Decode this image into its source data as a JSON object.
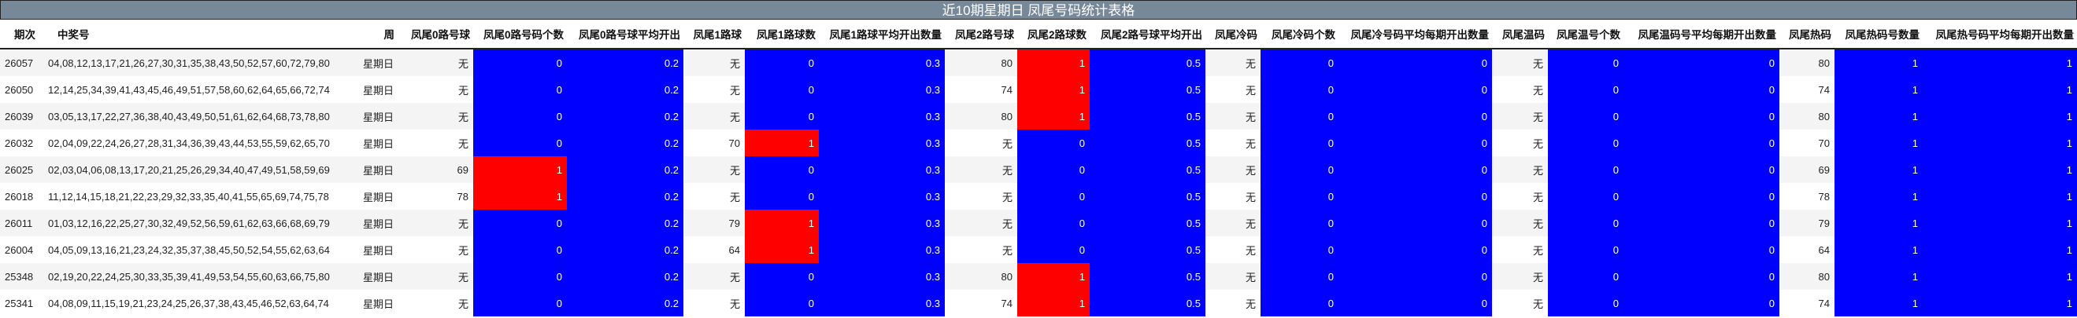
{
  "title": "近10期星期日 凤尾号码统计表格",
  "colors": {
    "title_bg": "#778899",
    "blue": "#0000ff",
    "red": "#ff0000"
  },
  "headers": [
    "期次",
    "中奖号",
    "周",
    "凤尾0路号球",
    "凤尾0路号码个数",
    "凤尾0路号球平均开出",
    "凤尾1路球",
    "凤尾1路球数",
    "凤尾1路球平均开出数量",
    "凤尾2路号球",
    "凤尾2路球数",
    "凤尾2路号球平均开出",
    "凤尾冷码",
    "凤尾冷码个数",
    "凤尾冷号码平均每期开出数量",
    "凤尾温码",
    "凤尾温号个数",
    "凤尾温码号平均每期开出数量",
    "凤尾热码",
    "凤尾热码号数量",
    "凤尾热号码平均每期开出数量"
  ],
  "rows": [
    {
      "issue": "26057",
      "numbers": "04,08,12,13,17,21,26,27,30,31,35,38,43,50,52,57,60,72,79,80",
      "week": "星期日",
      "r0": "无",
      "r0n": "0",
      "r0a": "0.2",
      "r1": "无",
      "r1n": "0",
      "r1a": "0.3",
      "r2": "80",
      "r2n": "1",
      "r2a": "0.5",
      "cold": "无",
      "coldn": "0",
      "colda": "0",
      "warm": "无",
      "warmn": "0",
      "warma": "0",
      "hot": "80",
      "hotn": "1",
      "hota": "1"
    },
    {
      "issue": "26050",
      "numbers": "12,14,25,34,39,41,43,45,46,49,51,57,58,60,62,64,65,66,72,74",
      "week": "星期日",
      "r0": "无",
      "r0n": "0",
      "r0a": "0.2",
      "r1": "无",
      "r1n": "0",
      "r1a": "0.3",
      "r2": "74",
      "r2n": "1",
      "r2a": "0.5",
      "cold": "无",
      "coldn": "0",
      "colda": "0",
      "warm": "无",
      "warmn": "0",
      "warma": "0",
      "hot": "74",
      "hotn": "1",
      "hota": "1"
    },
    {
      "issue": "26039",
      "numbers": "03,05,13,17,22,27,36,38,40,43,49,50,51,61,62,64,68,73,78,80",
      "week": "星期日",
      "r0": "无",
      "r0n": "0",
      "r0a": "0.2",
      "r1": "无",
      "r1n": "0",
      "r1a": "0.3",
      "r2": "80",
      "r2n": "1",
      "r2a": "0.5",
      "cold": "无",
      "coldn": "0",
      "colda": "0",
      "warm": "无",
      "warmn": "0",
      "warma": "0",
      "hot": "80",
      "hotn": "1",
      "hota": "1"
    },
    {
      "issue": "26032",
      "numbers": "02,04,09,22,24,26,27,28,31,34,36,39,43,44,53,55,59,62,65,70",
      "week": "星期日",
      "r0": "无",
      "r0n": "0",
      "r0a": "0.2",
      "r1": "70",
      "r1n": "1",
      "r1a": "0.3",
      "r2": "无",
      "r2n": "0",
      "r2a": "0.5",
      "cold": "无",
      "coldn": "0",
      "colda": "0",
      "warm": "无",
      "warmn": "0",
      "warma": "0",
      "hot": "70",
      "hotn": "1",
      "hota": "1"
    },
    {
      "issue": "26025",
      "numbers": "02,03,04,06,08,13,17,20,21,25,26,29,34,40,47,49,51,58,59,69",
      "week": "星期日",
      "r0": "69",
      "r0n": "1",
      "r0a": "0.2",
      "r1": "无",
      "r1n": "0",
      "r1a": "0.3",
      "r2": "无",
      "r2n": "0",
      "r2a": "0.5",
      "cold": "无",
      "coldn": "0",
      "colda": "0",
      "warm": "无",
      "warmn": "0",
      "warma": "0",
      "hot": "69",
      "hotn": "1",
      "hota": "1"
    },
    {
      "issue": "26018",
      "numbers": "11,12,14,15,18,21,22,23,29,32,33,35,40,41,55,65,69,74,75,78",
      "week": "星期日",
      "r0": "78",
      "r0n": "1",
      "r0a": "0.2",
      "r1": "无",
      "r1n": "0",
      "r1a": "0.3",
      "r2": "无",
      "r2n": "0",
      "r2a": "0.5",
      "cold": "无",
      "coldn": "0",
      "colda": "0",
      "warm": "无",
      "warmn": "0",
      "warma": "0",
      "hot": "78",
      "hotn": "1",
      "hota": "1"
    },
    {
      "issue": "26011",
      "numbers": "01,03,12,16,22,25,27,30,32,49,52,56,59,61,62,63,66,68,69,79",
      "week": "星期日",
      "r0": "无",
      "r0n": "0",
      "r0a": "0.2",
      "r1": "79",
      "r1n": "1",
      "r1a": "0.3",
      "r2": "无",
      "r2n": "0",
      "r2a": "0.5",
      "cold": "无",
      "coldn": "0",
      "colda": "0",
      "warm": "无",
      "warmn": "0",
      "warma": "0",
      "hot": "79",
      "hotn": "1",
      "hota": "1"
    },
    {
      "issue": "26004",
      "numbers": "04,05,09,13,16,21,23,24,32,35,37,38,45,50,52,54,55,62,63,64",
      "week": "星期日",
      "r0": "无",
      "r0n": "0",
      "r0a": "0.2",
      "r1": "64",
      "r1n": "1",
      "r1a": "0.3",
      "r2": "无",
      "r2n": "0",
      "r2a": "0.5",
      "cold": "无",
      "coldn": "0",
      "colda": "0",
      "warm": "无",
      "warmn": "0",
      "warma": "0",
      "hot": "64",
      "hotn": "1",
      "hota": "1"
    },
    {
      "issue": "25348",
      "numbers": "02,19,20,22,24,25,30,33,35,39,41,49,53,54,55,60,63,66,75,80",
      "week": "星期日",
      "r0": "无",
      "r0n": "0",
      "r0a": "0.2",
      "r1": "无",
      "r1n": "0",
      "r1a": "0.3",
      "r2": "80",
      "r2n": "1",
      "r2a": "0.5",
      "cold": "无",
      "coldn": "0",
      "colda": "0",
      "warm": "无",
      "warmn": "0",
      "warma": "0",
      "hot": "80",
      "hotn": "1",
      "hota": "1"
    },
    {
      "issue": "25341",
      "numbers": "04,08,09,11,15,19,21,23,24,25,26,37,38,43,45,46,52,63,64,74",
      "week": "星期日",
      "r0": "无",
      "r0n": "0",
      "r0a": "0.2",
      "r1": "无",
      "r1n": "0",
      "r1a": "0.3",
      "r2": "74",
      "r2n": "1",
      "r2a": "0.5",
      "cold": "无",
      "coldn": "0",
      "colda": "0",
      "warm": "无",
      "warmn": "0",
      "warma": "0",
      "hot": "74",
      "hotn": "1",
      "hota": "1"
    }
  ]
}
